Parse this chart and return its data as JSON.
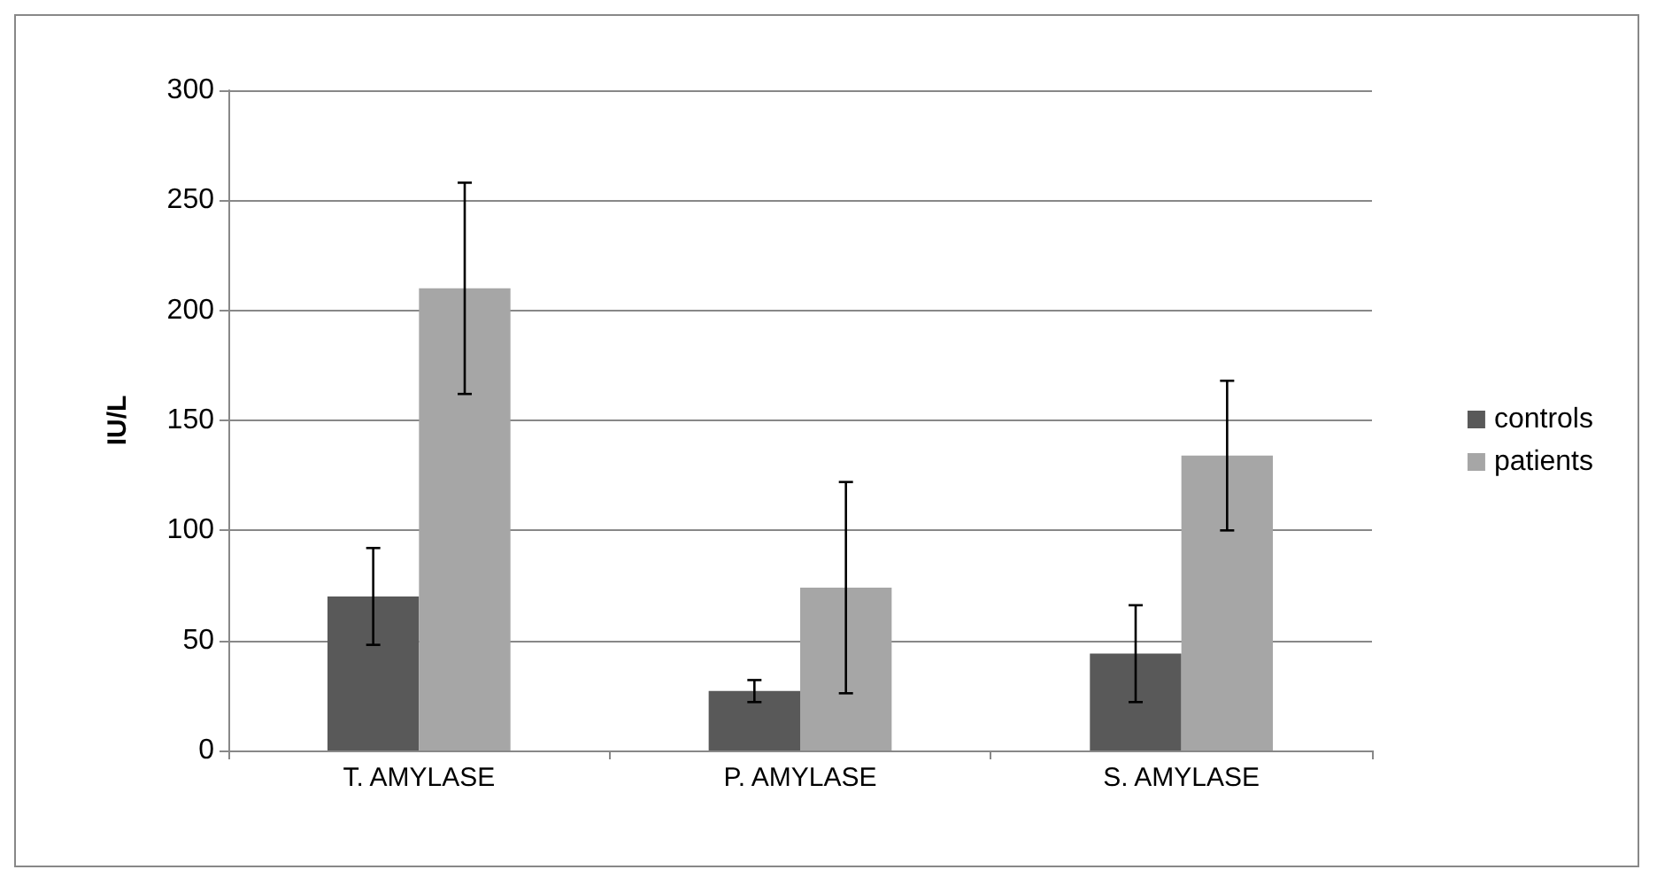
{
  "chart_data": {
    "type": "bar",
    "ylabel": "IU/L",
    "categories": [
      "T. AMYLASE",
      "P. AMYLASE",
      "S. AMYLASE"
    ],
    "series": [
      {
        "name": "controls",
        "color": "#595959",
        "values": [
          70,
          27,
          44
        ],
        "errors": [
          22,
          5,
          22
        ]
      },
      {
        "name": "patients",
        "color": "#a6a6a6",
        "values": [
          210,
          74,
          134
        ],
        "errors": [
          48,
          48,
          34
        ]
      }
    ],
    "ylim": [
      0,
      300
    ],
    "yticks": [
      0,
      50,
      100,
      150,
      200,
      250,
      300
    ],
    "grid": "y",
    "legend": "right"
  }
}
